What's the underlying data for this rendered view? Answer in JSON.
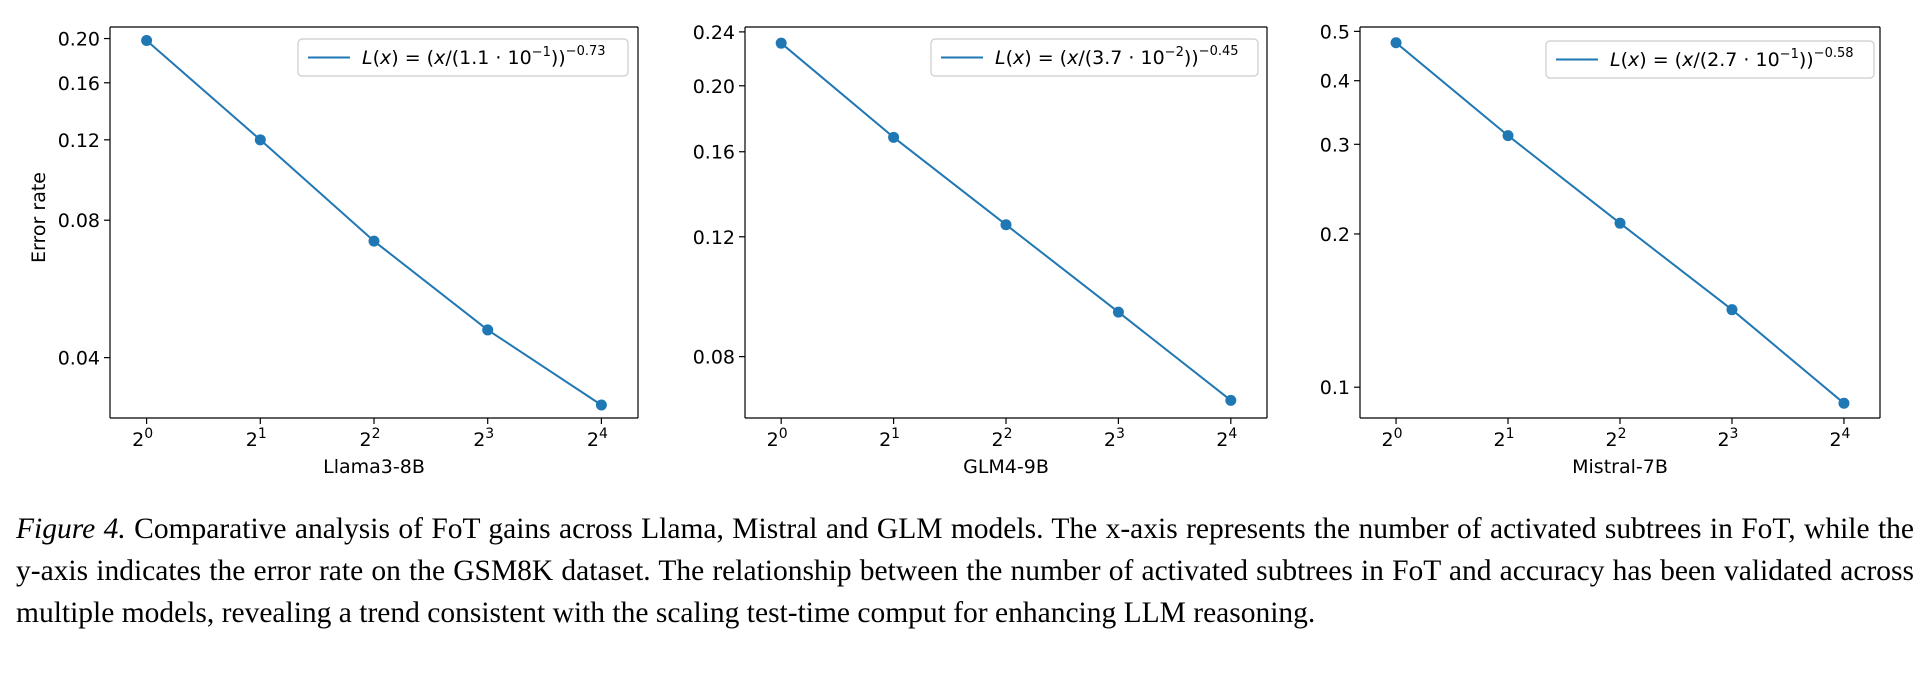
{
  "chart_data": [
    {
      "type": "line",
      "xscale": "log2",
      "yscale": "log",
      "x": [
        1,
        2,
        4,
        8,
        16
      ],
      "x_tick_base": "2",
      "x_tick_exps": [
        "0",
        "1",
        "2",
        "3",
        "4"
      ],
      "values": [
        0.198,
        0.12,
        0.072,
        0.046,
        0.0315
      ],
      "xlabel": "Llama3-8B",
      "ylabel": "Error rate",
      "xlim": [
        0.8,
        20
      ],
      "ylim": [
        0.0295,
        0.212
      ],
      "y_ticks": [
        0.04,
        0.08,
        0.12,
        0.16,
        0.2
      ],
      "y_tick_labels": [
        "0.04",
        "0.08",
        "0.12",
        "0.16",
        "0.20"
      ],
      "legend": {
        "placement": "upper-right",
        "prefix": "L(x) = (x/(",
        "coef": "1.1",
        "exp10": "−1",
        "exponent": "−0.73"
      },
      "color": "#1f77b4"
    },
    {
      "type": "line",
      "xscale": "log2",
      "yscale": "log",
      "x": [
        1,
        2,
        4,
        8,
        16
      ],
      "x_tick_base": "2",
      "x_tick_exps": [
        "0",
        "1",
        "2",
        "3",
        "4"
      ],
      "values": [
        0.231,
        0.168,
        0.125,
        0.093,
        0.069
      ],
      "xlabel": "GLM4-9B",
      "ylabel": "",
      "xlim": [
        0.8,
        20
      ],
      "ylim": [
        0.065,
        0.244
      ],
      "y_ticks": [
        0.08,
        0.12,
        0.16,
        0.2,
        0.24
      ],
      "y_tick_labels": [
        "0.08",
        "0.12",
        "0.16",
        "0.20",
        "0.24"
      ],
      "legend": {
        "placement": "upper-right",
        "prefix": "L(x) = (x/(",
        "coef": "3.7",
        "exp10": "−2",
        "exponent": "−0.45"
      },
      "color": "#1f77b4"
    },
    {
      "type": "line",
      "xscale": "log2",
      "yscale": "log",
      "x": [
        1,
        2,
        4,
        8,
        16
      ],
      "x_tick_base": "2",
      "x_tick_exps": [
        "0",
        "1",
        "2",
        "3",
        "4"
      ],
      "values": [
        0.475,
        0.312,
        0.21,
        0.142,
        0.093
      ],
      "xlabel": "Mistral-7B",
      "ylabel": "",
      "xlim": [
        0.8,
        20
      ],
      "ylim": [
        0.087,
        0.51
      ],
      "y_ticks": [
        0.1,
        0.2,
        0.3,
        0.4,
        0.5
      ],
      "y_tick_labels": [
        "0.1",
        "0.2",
        "0.3",
        "0.4",
        "0.5"
      ],
      "legend": {
        "placement": "upper-right",
        "prefix": "L(x) = (x/(",
        "coef": "2.7",
        "exp10": "−1",
        "exponent": "−0.58"
      },
      "color": "#1f77b4"
    }
  ],
  "caption": {
    "figure_label": "Figure 4.",
    "text": "Comparative analysis of FoT gains across Llama, Mistral and GLM models.  The x-axis represents the number of activated subtrees in FoT, while the y-axis indicates the error rate on the GSM8K dataset.  The relationship between the number of activated subtrees in FoT and accuracy has been validated across multiple models, revealing a trend consistent with the scaling test-time comput for enhancing LLM reasoning."
  }
}
